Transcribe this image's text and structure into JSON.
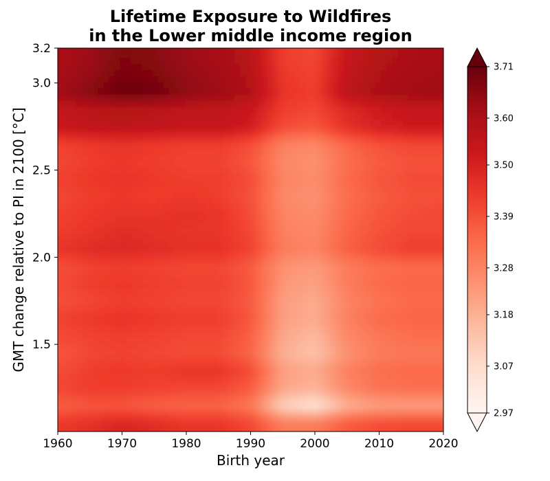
{
  "chart_data": {
    "type": "heatmap",
    "title_lines": [
      "Lifetime Exposure to Wildfires",
      "in the Lower middle income region"
    ],
    "xlabel": "Birth year",
    "ylabel": "GMT change relative to PI in 2100 [°C]",
    "xlim": [
      1960,
      2020
    ],
    "ylim": [
      1.0,
      3.2
    ],
    "x_ticks": [
      "1960",
      "1970",
      "1980",
      "1990",
      "2000",
      "2010",
      "2020"
    ],
    "y_ticks": [
      {
        "value": 1.5,
        "label": "1.5"
      },
      {
        "value": 2.0,
        "label": "2.0"
      },
      {
        "value": 2.5,
        "label": "2.5"
      },
      {
        "value": 3.0,
        "label": "3.0"
      },
      {
        "value": 3.2,
        "label": "3.2"
      }
    ],
    "colormap": "Reds",
    "colorbar": {
      "min": 2.97,
      "max": 3.71,
      "extend": "both",
      "ticks": [
        "2.97",
        "3.07",
        "3.18",
        "3.28",
        "3.39",
        "3.50",
        "3.60",
        "3.71"
      ]
    },
    "x": [
      1960,
      1965,
      1970,
      1975,
      1980,
      1985,
      1990,
      1995,
      2000,
      2005,
      2010,
      2015,
      2020
    ],
    "y": [
      1.05,
      1.15,
      1.25,
      1.35,
      1.45,
      1.55,
      1.65,
      1.75,
      1.85,
      1.95,
      2.05,
      2.15,
      2.25,
      2.35,
      2.45,
      2.55,
      2.65,
      2.75,
      2.85,
      2.95,
      3.05,
      3.15
    ],
    "z": [
      [
        3.44,
        3.46,
        3.49,
        3.47,
        3.45,
        3.45,
        3.41,
        3.3,
        3.3,
        3.37,
        3.4,
        3.41,
        3.41
      ],
      [
        3.36,
        3.38,
        3.38,
        3.36,
        3.35,
        3.35,
        3.31,
        3.1,
        3.05,
        3.18,
        3.22,
        3.22,
        3.22
      ],
      [
        3.41,
        3.43,
        3.43,
        3.42,
        3.41,
        3.41,
        3.37,
        3.2,
        3.17,
        3.27,
        3.32,
        3.33,
        3.33
      ],
      [
        3.4,
        3.43,
        3.44,
        3.43,
        3.45,
        3.45,
        3.4,
        3.22,
        3.19,
        3.29,
        3.33,
        3.34,
        3.34
      ],
      [
        3.38,
        3.41,
        3.42,
        3.41,
        3.4,
        3.4,
        3.35,
        3.18,
        3.14,
        3.25,
        3.3,
        3.31,
        3.31
      ],
      [
        3.4,
        3.42,
        3.43,
        3.42,
        3.41,
        3.41,
        3.36,
        3.2,
        3.16,
        3.27,
        3.31,
        3.33,
        3.33
      ],
      [
        3.42,
        3.44,
        3.45,
        3.44,
        3.43,
        3.43,
        3.38,
        3.22,
        3.19,
        3.29,
        3.34,
        3.35,
        3.35
      ],
      [
        3.39,
        3.41,
        3.43,
        3.42,
        3.41,
        3.41,
        3.37,
        3.22,
        3.19,
        3.28,
        3.32,
        3.34,
        3.34
      ],
      [
        3.4,
        3.43,
        3.44,
        3.43,
        3.42,
        3.42,
        3.38,
        3.24,
        3.21,
        3.3,
        3.34,
        3.35,
        3.35
      ],
      [
        3.39,
        3.42,
        3.43,
        3.42,
        3.41,
        3.41,
        3.37,
        3.25,
        3.23,
        3.3,
        3.33,
        3.34,
        3.34
      ],
      [
        3.45,
        3.47,
        3.48,
        3.47,
        3.46,
        3.46,
        3.42,
        3.3,
        3.28,
        3.36,
        3.4,
        3.43,
        3.43
      ],
      [
        3.43,
        3.45,
        3.47,
        3.46,
        3.45,
        3.45,
        3.41,
        3.29,
        3.27,
        3.35,
        3.39,
        3.41,
        3.41
      ],
      [
        3.42,
        3.44,
        3.45,
        3.45,
        3.46,
        3.45,
        3.4,
        3.28,
        3.26,
        3.34,
        3.38,
        3.4,
        3.41
      ],
      [
        3.41,
        3.43,
        3.44,
        3.43,
        3.44,
        3.43,
        3.39,
        3.27,
        3.25,
        3.33,
        3.37,
        3.39,
        3.39
      ],
      [
        3.42,
        3.44,
        3.45,
        3.44,
        3.43,
        3.43,
        3.4,
        3.28,
        3.26,
        3.34,
        3.38,
        3.4,
        3.4
      ],
      [
        3.41,
        3.43,
        3.44,
        3.43,
        3.42,
        3.42,
        3.38,
        3.27,
        3.25,
        3.33,
        3.37,
        3.39,
        3.39
      ],
      [
        3.42,
        3.44,
        3.45,
        3.44,
        3.43,
        3.43,
        3.4,
        3.29,
        3.27,
        3.35,
        3.39,
        3.41,
        3.41
      ],
      [
        3.53,
        3.55,
        3.56,
        3.55,
        3.54,
        3.54,
        3.51,
        3.4,
        3.38,
        3.46,
        3.5,
        3.52,
        3.52
      ],
      [
        3.55,
        3.57,
        3.58,
        3.57,
        3.56,
        3.56,
        3.53,
        3.43,
        3.41,
        3.48,
        3.52,
        3.54,
        3.54
      ],
      [
        3.62,
        3.66,
        3.7,
        3.69,
        3.65,
        3.63,
        3.59,
        3.45,
        3.43,
        3.56,
        3.6,
        3.62,
        3.62
      ],
      [
        3.61,
        3.64,
        3.68,
        3.67,
        3.64,
        3.62,
        3.58,
        3.44,
        3.42,
        3.55,
        3.59,
        3.61,
        3.62
      ],
      [
        3.6,
        3.63,
        3.67,
        3.66,
        3.63,
        3.61,
        3.57,
        3.43,
        3.41,
        3.54,
        3.58,
        3.6,
        3.61
      ]
    ]
  }
}
